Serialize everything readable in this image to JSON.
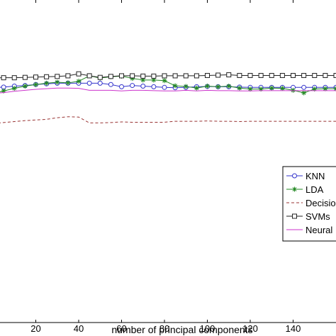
{
  "chart_data": {
    "type": "line",
    "xlabel": "number of principal components",
    "ylabel": "",
    "xlim": [
      0,
      160
    ],
    "ylim": [
      0,
      1
    ],
    "x_ticks": [
      20,
      40,
      60,
      80,
      100,
      120,
      140
    ],
    "x_tick_labels": [
      "20",
      "40",
      "60",
      "80",
      "100",
      "120",
      "140"
    ],
    "grid": false,
    "legend_position": "right",
    "series": [
      {
        "name": "KNN",
        "color": "#3333cc",
        "line_style": "solid",
        "marker": "circle",
        "x": [
          0,
          5,
          10,
          15,
          20,
          25,
          30,
          35,
          40,
          45,
          50,
          55,
          60,
          65,
          70,
          75,
          80,
          85,
          90,
          95,
          100,
          105,
          110,
          115,
          120,
          125,
          130,
          135,
          140,
          145,
          150,
          155,
          160
        ],
        "y": [
          0.728,
          0.73,
          0.733,
          0.735,
          0.738,
          0.74,
          0.742,
          0.742,
          0.742,
          0.742,
          0.742,
          0.738,
          0.731,
          0.735,
          0.733,
          0.731,
          0.729,
          0.728,
          0.729,
          0.731,
          0.732,
          0.731,
          0.731,
          0.73,
          0.729,
          0.729,
          0.729,
          0.729,
          0.729,
          0.729,
          0.729,
          0.729,
          0.729
        ]
      },
      {
        "name": "LDA",
        "color": "#228822",
        "line_style": "solid",
        "marker": "star",
        "x": [
          0,
          5,
          10,
          15,
          20,
          25,
          30,
          35,
          40,
          45,
          50,
          55,
          60,
          65,
          70,
          75,
          80,
          85,
          90,
          95,
          100,
          105,
          110,
          115,
          120,
          125,
          130,
          135,
          140,
          145,
          150,
          155,
          160
        ],
        "y": [
          0.71,
          0.718,
          0.726,
          0.733,
          0.738,
          0.742,
          0.745,
          0.743,
          0.748,
          0.765,
          0.758,
          0.762,
          0.764,
          0.757,
          0.752,
          0.752,
          0.75,
          0.734,
          0.732,
          0.727,
          0.733,
          0.731,
          0.733,
          0.727,
          0.724,
          0.724,
          0.727,
          0.726,
          0.72,
          0.712,
          0.724,
          0.725,
          0.725
        ]
      },
      {
        "name": "Decision",
        "color": "#993333",
        "line_style": "dashed",
        "marker": "none",
        "x": [
          0,
          5,
          10,
          15,
          20,
          25,
          30,
          35,
          40,
          45,
          50,
          55,
          60,
          65,
          70,
          75,
          80,
          85,
          90,
          95,
          100,
          105,
          110,
          115,
          120,
          125,
          130,
          135,
          140,
          145,
          150,
          155,
          160
        ],
        "y": [
          0.617,
          0.62,
          0.623,
          0.626,
          0.628,
          0.63,
          0.635,
          0.638,
          0.637,
          0.619,
          0.619,
          0.62,
          0.622,
          0.621,
          0.621,
          0.621,
          0.621,
          0.624,
          0.624,
          0.624,
          0.625,
          0.624,
          0.624,
          0.623,
          0.624,
          0.624,
          0.624,
          0.624,
          0.624,
          0.624,
          0.624,
          0.624,
          0.624
        ]
      },
      {
        "name": "SVMs",
        "color": "#222222",
        "line_style": "solid",
        "marker": "square",
        "x": [
          0,
          5,
          10,
          15,
          20,
          25,
          30,
          35,
          40,
          45,
          50,
          55,
          60,
          65,
          70,
          75,
          80,
          85,
          90,
          95,
          100,
          105,
          110,
          115,
          120,
          125,
          130,
          135,
          140,
          145,
          150,
          155,
          160
        ],
        "y": [
          0.758,
          0.759,
          0.759,
          0.76,
          0.761,
          0.762,
          0.763,
          0.765,
          0.771,
          0.765,
          0.76,
          0.763,
          0.765,
          0.765,
          0.764,
          0.764,
          0.765,
          0.765,
          0.765,
          0.765,
          0.766,
          0.767,
          0.768,
          0.766,
          0.766,
          0.766,
          0.766,
          0.766,
          0.766,
          0.766,
          0.766,
          0.766,
          0.766
        ]
      },
      {
        "name": "Neural",
        "color": "#cc33cc",
        "line_style": "solid",
        "marker": "none",
        "x": [
          0,
          5,
          10,
          15,
          20,
          25,
          30,
          35,
          40,
          45,
          50,
          55,
          60,
          65,
          70,
          75,
          80,
          85,
          90,
          95,
          100,
          105,
          110,
          115,
          120,
          125,
          130,
          135,
          140,
          145,
          150,
          155,
          160
        ],
        "y": [
          0.71,
          0.713,
          0.717,
          0.72,
          0.723,
          0.725,
          0.727,
          0.727,
          0.726,
          0.72,
          0.72,
          0.72,
          0.718,
          0.72,
          0.72,
          0.719,
          0.718,
          0.718,
          0.72,
          0.718,
          0.72,
          0.719,
          0.719,
          0.718,
          0.718,
          0.719,
          0.719,
          0.719,
          0.719,
          0.719,
          0.719,
          0.719,
          0.719
        ]
      }
    ]
  }
}
